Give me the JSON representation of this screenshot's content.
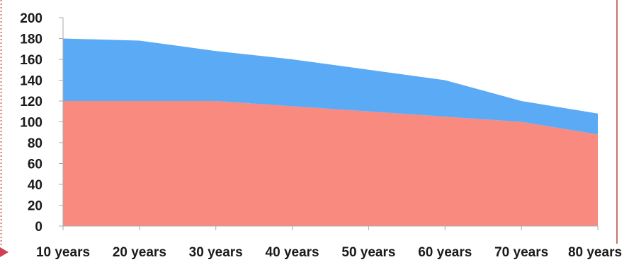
{
  "chart_data": {
    "type": "area",
    "stacked": true,
    "categories": [
      "10 years",
      "20 years",
      "30 years",
      "40 years",
      "50 years",
      "60 years",
      "70 years",
      "80 years"
    ],
    "series": [
      {
        "values": [
          120,
          120,
          120,
          115,
          110,
          105,
          100,
          88
        ],
        "color": "#f98a80"
      },
      {
        "values": [
          60,
          58,
          48,
          45,
          40,
          35,
          20,
          20
        ],
        "color": "#5aaaf5"
      }
    ],
    "y_ticks": [
      0,
      20,
      40,
      60,
      80,
      100,
      120,
      140,
      160,
      180,
      200
    ],
    "ylim": [
      0,
      200
    ],
    "grid": false,
    "axis_color": "#aaaaaa",
    "border_color": "#c0443a",
    "marker_color": "#d04050"
  }
}
